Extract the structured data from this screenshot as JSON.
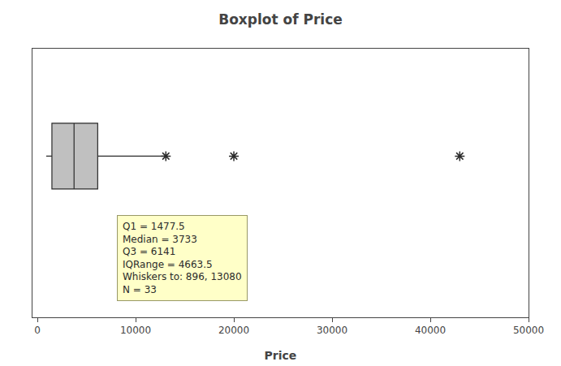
{
  "chart_data": {
    "type": "box",
    "title": "Boxplot of Price",
    "xlabel": "Price",
    "q1": 1477.5,
    "median": 3733,
    "q3": 6141,
    "whisker_low": 896,
    "whisker_high": 13080,
    "outliers": [
      13080,
      20000,
      43000
    ],
    "marker": "asterisk",
    "annotation": "Q1 = 1477.5\nMedian = 3733\nQ3 = 6141\nIQRange = 4663.5\nWhiskers to: 896, 13080\nN = 33",
    "xlim": [
      -500,
      50000
    ],
    "xticks": [
      0,
      10000,
      20000,
      30000,
      40000,
      50000
    ],
    "tick_labels": "x",
    "color": "#c0c0c0",
    "grid": false
  }
}
